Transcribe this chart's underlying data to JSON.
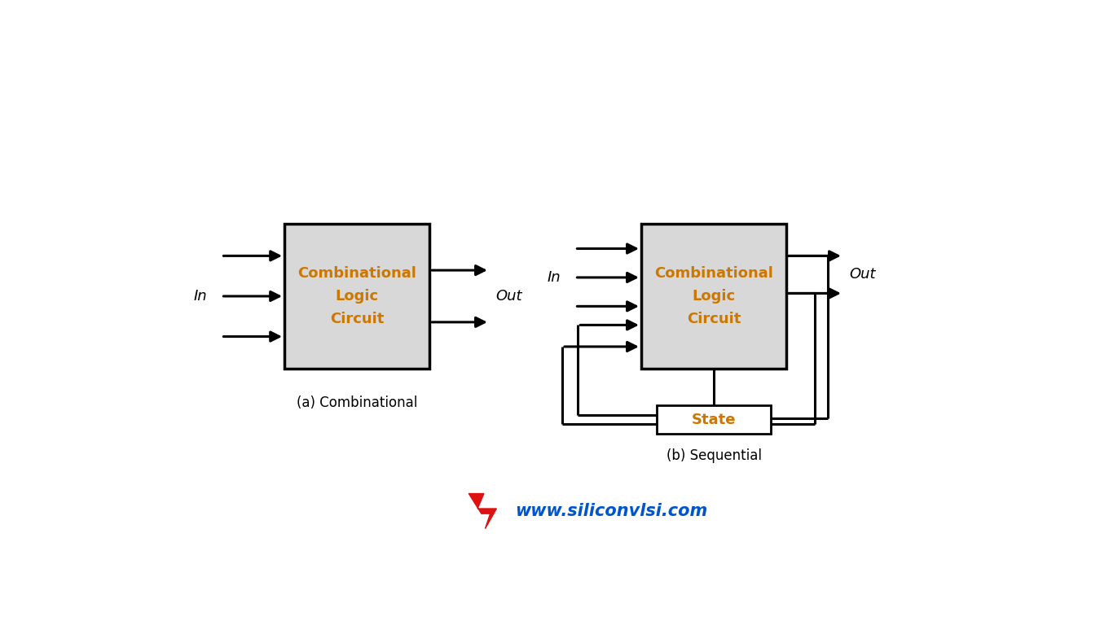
{
  "bg_color": "#ffffff",
  "box_fill": "#d8d8d8",
  "box_edge": "#000000",
  "text_color_box": "#cc7700",
  "text_color_black": "#000000",
  "arrow_color": "#000000",
  "line_color": "#000000",
  "state_fill": "#ffffff",
  "watermark_text": "www.siliconvlsi.com",
  "watermark_color": "#0055cc",
  "label_a": "(a) Combinational",
  "label_b": "(b) Sequential",
  "box_text_line1": "Combinational",
  "box_text_line2": "Logic",
  "box_text_line3": "Circuit",
  "state_text": "State",
  "in_label": "In",
  "out_label": "Out",
  "lw": 2.2
}
